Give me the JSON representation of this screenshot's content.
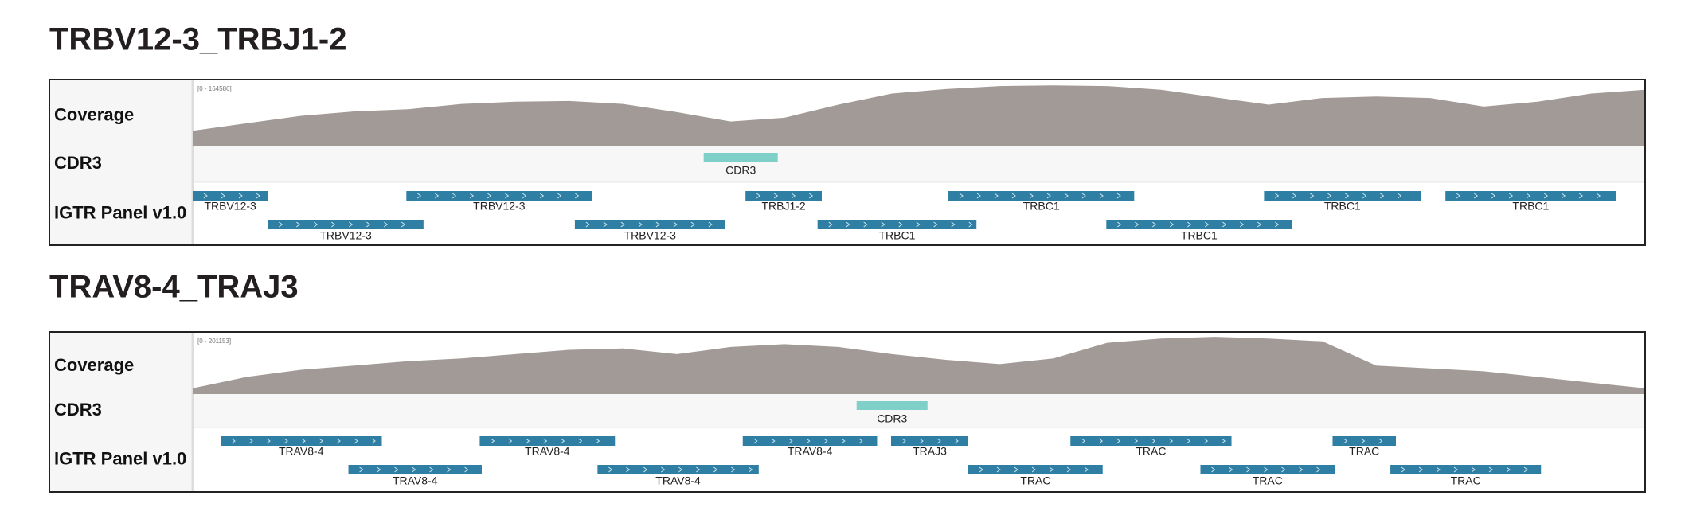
{
  "panels": [
    {
      "title": "TRBV12-3_TRBJ1-2",
      "coverage": {
        "label": "Coverage",
        "range_label": "[0 - 164586]",
        "ylim": [
          0,
          164586
        ],
        "color": "#a29a97",
        "values": [
          40000,
          60000,
          80000,
          92000,
          98000,
          112000,
          118000,
          120000,
          112000,
          90000,
          65000,
          75000,
          110000,
          140000,
          152000,
          160000,
          162000,
          160000,
          150000,
          130000,
          110000,
          128000,
          132000,
          128000,
          105000,
          118000,
          140000,
          150000
        ]
      },
      "cdr3": {
        "label": "CDR3",
        "feature": "CDR3",
        "color": "#7fd0c8"
      },
      "genes": {
        "label": "IGTR Panel v1.0",
        "color": "#2e7fa3",
        "features": [
          "TRBV12-3",
          "TRBV12-3",
          "TRBJ1-2",
          "TRBC1",
          "TRBC1",
          "TRBC1",
          "TRBV12-3",
          "TRBV12-3",
          "TRBC1",
          "TRBC1"
        ]
      }
    },
    {
      "title": "TRAV8-4_TRAJ3",
      "coverage": {
        "label": "Coverage",
        "range_label": "[0 - 201153]",
        "ylim": [
          0,
          201153
        ],
        "color": "#a29a97",
        "values": [
          20000,
          60000,
          85000,
          100000,
          115000,
          125000,
          140000,
          155000,
          160000,
          140000,
          165000,
          175000,
          165000,
          140000,
          120000,
          105000,
          125000,
          180000,
          195000,
          201000,
          195000,
          185000,
          100000,
          90000,
          80000,
          60000,
          40000,
          20000
        ]
      },
      "cdr3": {
        "label": "CDR3",
        "feature": "CDR3",
        "color": "#7fd0c8"
      },
      "genes": {
        "label": "IGTR Panel v1.0",
        "color": "#2e7fa3",
        "features": [
          "TRAV8-4",
          "TRAV8-4",
          "TRAV8-4",
          "TRAJ3",
          "TRAC",
          "TRAC",
          "TRAV8-4",
          "TRAV8-4",
          "TRAC",
          "TRAC",
          "TRAC"
        ]
      }
    }
  ]
}
